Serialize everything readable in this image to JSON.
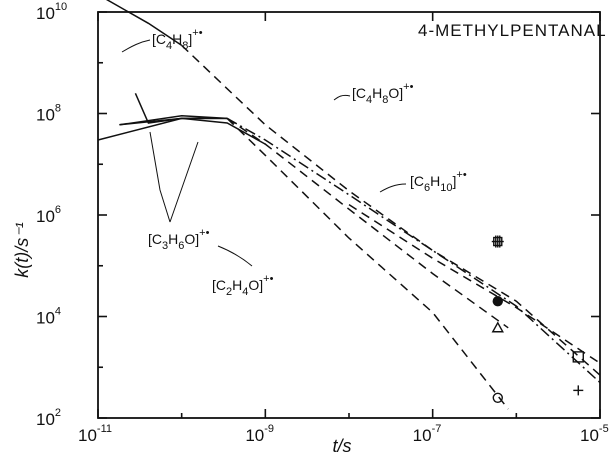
{
  "chart_data": {
    "type": "line",
    "title": "4-METHYLPENTANAL",
    "xlabel": "t/s",
    "ylabel": "k(t)/s⁻¹",
    "xscale": "log",
    "yscale": "log",
    "xlim": [
      1e-11,
      1e-05
    ],
    "ylim": [
      100.0,
      10000000000.0
    ],
    "x_ticks": [
      {
        "value": 1e-11,
        "base": "10",
        "exp": "-11"
      },
      {
        "value": 1e-09,
        "base": "10",
        "exp": "-9"
      },
      {
        "value": 1e-07,
        "base": "10",
        "exp": "-7"
      },
      {
        "value": 1e-05,
        "base": "10",
        "exp": "-5"
      }
    ],
    "y_ticks": [
      {
        "value": 100.0,
        "base": "10",
        "exp": "2"
      },
      {
        "value": 10000.0,
        "base": "10",
        "exp": "4"
      },
      {
        "value": 1000000.0,
        "base": "10",
        "exp": "6"
      },
      {
        "value": 100000000.0,
        "base": "10",
        "exp": "8"
      },
      {
        "value": 10000000000.0,
        "base": "10",
        "exp": "10"
      }
    ],
    "series": [
      {
        "name": "[C4H8]+•",
        "label": {
          "pre": "[C",
          "s1": "4",
          "mid": "H",
          "s2": "8",
          "post": "]",
          "sup": "+•"
        },
        "points": [
          [
            1e-11,
            22000000000.0
          ],
          [
            4e-11,
            6000000000.0
          ],
          [
            1e-10,
            2200000000.0
          ],
          [
            4e-10,
            250000000.0
          ],
          [
            1e-09,
            60000000.0
          ],
          [
            1e-08,
            3000000.0
          ],
          [
            1e-07,
            200000.0
          ],
          [
            1e-06,
            20000.0
          ],
          [
            1e-05,
            700.0
          ]
        ]
      },
      {
        "name": "[C4H8O]+•",
        "label": {
          "pre": "[C",
          "s1": "4",
          "mid": "H",
          "s2": "8",
          "post": "O]",
          "sup": "+•"
        },
        "points": [
          [
            2.8e-11,
            250000000.0
          ],
          [
            4e-11,
            65000000.0
          ],
          [
            1e-10,
            80000000.0
          ],
          [
            3.5e-10,
            65000000.0
          ],
          [
            1e-09,
            25000000.0
          ],
          [
            1e-08,
            1600000.0
          ],
          [
            1e-07,
            140000.0
          ],
          [
            1e-06,
            15000.0
          ],
          [
            1e-05,
            1200.0
          ]
        ]
      },
      {
        "name": "[C6H10]+•",
        "label": {
          "pre": "[C",
          "s1": "6",
          "mid": "H",
          "s2": "10",
          "post": "]",
          "sup": "+•"
        },
        "points": [
          [
            1.8e-11,
            60000000.0
          ],
          [
            1e-10,
            90000000.0
          ],
          [
            3.5e-10,
            80000000.0
          ],
          [
            1e-09,
            30000000.0
          ],
          [
            1e-08,
            2500000.0
          ],
          [
            1e-07,
            200000.0
          ],
          [
            1e-06,
            16000.0
          ],
          [
            1e-05,
            500.0
          ]
        ]
      },
      {
        "name": "[C3H6O]+•",
        "label": {
          "pre": "[C",
          "s1": "3",
          "mid": "H",
          "s2": "6",
          "post": "O]",
          "sup": "+•"
        },
        "points": [
          [
            1e-11,
            30000000.0
          ],
          [
            1e-10,
            80000000.0
          ],
          [
            3.5e-10,
            80000000.0
          ],
          [
            1e-09,
            25000000.0
          ],
          [
            1e-08,
            1300000.0
          ],
          [
            1e-07,
            70000.0
          ],
          [
            8e-07,
            6000.0
          ]
        ]
      },
      {
        "name": "[C2H4O]+•",
        "label": {
          "pre": "[C",
          "s1": "2",
          "mid": "H",
          "s2": "4",
          "post": "O]",
          "sup": "+•"
        },
        "points": [
          [
            1.8e-11,
            60000000.0
          ],
          [
            1e-10,
            80000000.0
          ],
          [
            3.5e-10,
            80000000.0
          ],
          [
            1e-09,
            15000000.0
          ],
          [
            1e-08,
            350000.0
          ],
          [
            1e-07,
            12000.0
          ],
          [
            8e-07,
            150.0
          ]
        ]
      }
    ],
    "markers": [
      {
        "symbol": "square-cross",
        "x": 6e-07,
        "y": 300000.0
      },
      {
        "symbol": "filled-circle",
        "x": 6e-07,
        "y": 20000.0
      },
      {
        "symbol": "triangle",
        "x": 6e-07,
        "y": 6000.0
      },
      {
        "symbol": "circle",
        "x": 6e-07,
        "y": 250.0
      },
      {
        "symbol": "square",
        "x": 5.5e-06,
        "y": 1600.0
      },
      {
        "symbol": "plus",
        "x": 5.5e-06,
        "y": 350.0
      }
    ]
  }
}
